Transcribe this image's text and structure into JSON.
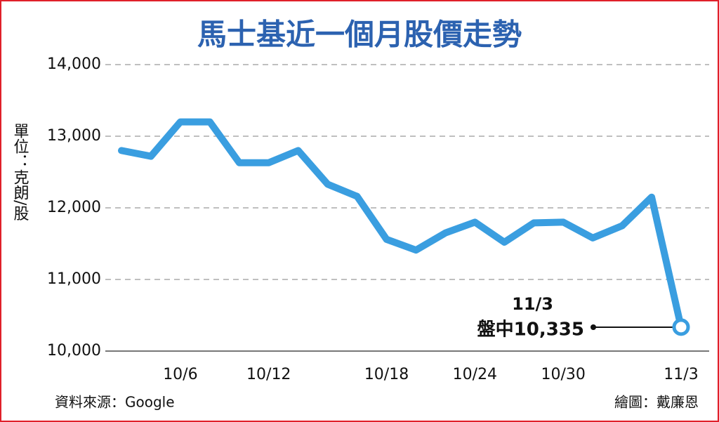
{
  "chart_data": {
    "type": "line",
    "title": "馬士基近一個月股價走勢",
    "y_label": "單位：克朗/股",
    "source": "資料來源：Google",
    "credit": "繪圖：戴廉恩",
    "annotations": [
      "11/3",
      "盤中10,335"
    ],
    "categories": [
      null,
      null,
      "10/6",
      null,
      null,
      "10/12",
      null,
      null,
      null,
      "10/18",
      null,
      null,
      "10/24",
      null,
      null,
      "10/30",
      null,
      null,
      null,
      "11/3"
    ],
    "series": [
      {
        "name": "馬士基",
        "color": "#3a9ee0",
        "values": [
          12800,
          12720,
          13200,
          13200,
          12630,
          12630,
          12800,
          12330,
          12160,
          11560,
          11410,
          11650,
          11800,
          11520,
          11790,
          11800,
          11580,
          11750,
          12150,
          10335
        ]
      }
    ],
    "ylim": [
      10000,
      14000
    ],
    "yticks": [
      {
        "value": 10000,
        "label": "10,000"
      },
      {
        "value": 11000,
        "label": "11,000"
      },
      {
        "value": 12000,
        "label": "12,000"
      },
      {
        "value": 13000,
        "label": "13,000"
      },
      {
        "value": 14000,
        "label": "14,000"
      }
    ],
    "grid": true
  }
}
